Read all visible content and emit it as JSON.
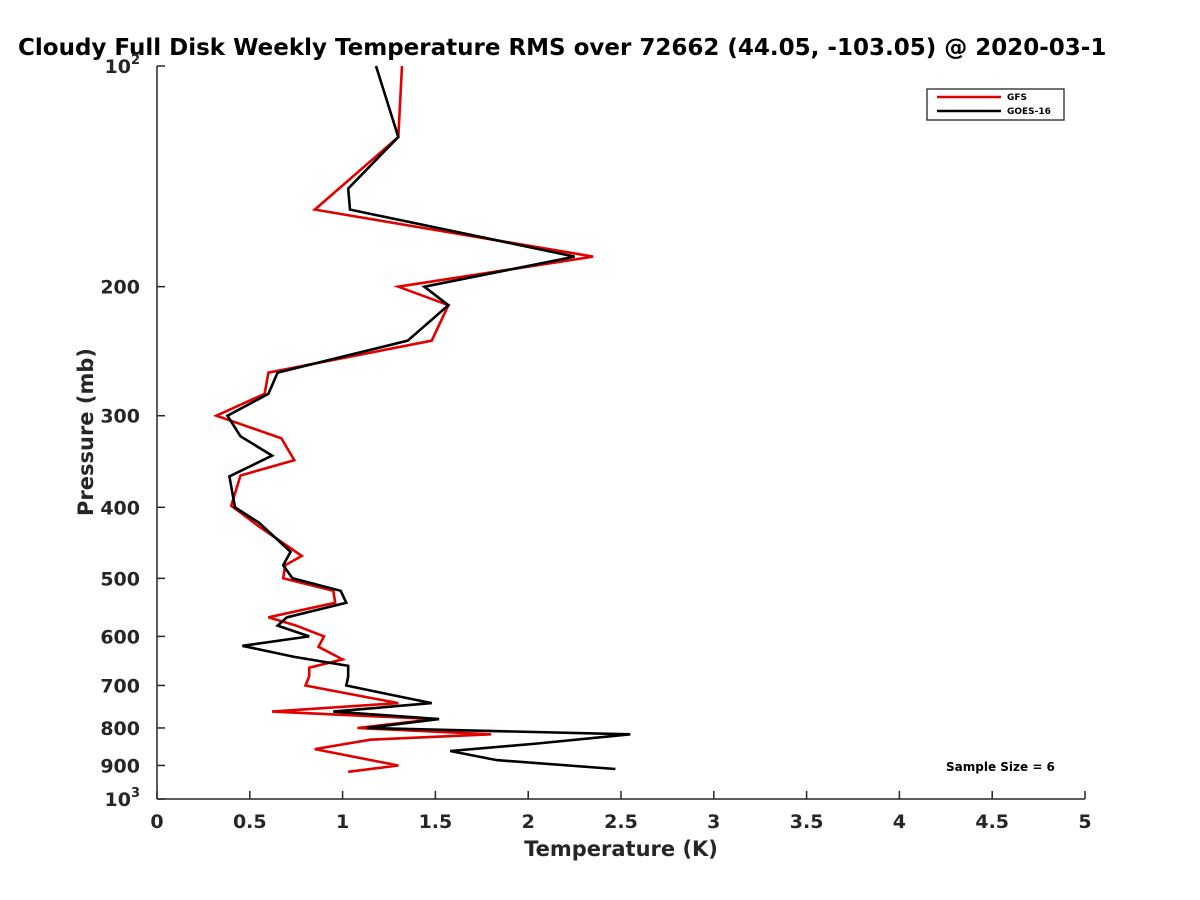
{
  "chart_data": {
    "type": "line",
    "title": "Cloudy Full Disk Weekly Temperature RMS over 72662 (44.05, -103.05) @ 2020-03-1",
    "xlabel": "Temperature (K)",
    "ylabel": "Pressure (mb)",
    "xlim": [
      0,
      5
    ],
    "ylim": [
      100,
      1000
    ],
    "y_scale": "log",
    "y_reversed": true,
    "grid": false,
    "legend_position": "top-right",
    "x_ticks": [
      0,
      0.5,
      1,
      1.5,
      2,
      2.5,
      3,
      3.5,
      4,
      4.5,
      5
    ],
    "x_tick_labels": [
      "0",
      "0.5",
      "1",
      "1.5",
      "2",
      "2.5",
      "3",
      "3.5",
      "4",
      "4.5",
      "5"
    ],
    "y_ticks": [
      {
        "value": 100,
        "base": "10",
        "exp": "2"
      },
      {
        "value": 200,
        "label": "200"
      },
      {
        "value": 300,
        "label": "300"
      },
      {
        "value": 400,
        "label": "400"
      },
      {
        "value": 500,
        "label": "500"
      },
      {
        "value": 600,
        "label": "600"
      },
      {
        "value": 700,
        "label": "700"
      },
      {
        "value": 800,
        "label": "800"
      },
      {
        "value": 900,
        "label": "900"
      },
      {
        "value": 1000,
        "base": "10",
        "exp": "3"
      }
    ],
    "series": [
      {
        "name": "GFS",
        "color": "#e00000",
        "points": [
          [
            1.32,
            100
          ],
          [
            1.3,
            125
          ],
          [
            0.85,
            157
          ],
          [
            2.35,
            182
          ],
          [
            1.3,
            200
          ],
          [
            1.57,
            212
          ],
          [
            1.48,
            237
          ],
          [
            0.6,
            262
          ],
          [
            0.58,
            280
          ],
          [
            0.32,
            300
          ],
          [
            0.67,
            322
          ],
          [
            0.74,
            345
          ],
          [
            0.45,
            362
          ],
          [
            0.4,
            398
          ],
          [
            0.55,
            425
          ],
          [
            0.78,
            466
          ],
          [
            0.69,
            480
          ],
          [
            0.68,
            500
          ],
          [
            0.95,
            520
          ],
          [
            0.96,
            540
          ],
          [
            0.6,
            565
          ],
          [
            0.75,
            580
          ],
          [
            0.9,
            600
          ],
          [
            0.87,
            620
          ],
          [
            1.0,
            645
          ],
          [
            0.82,
            662
          ],
          [
            0.82,
            680
          ],
          [
            0.8,
            700
          ],
          [
            1.05,
            720
          ],
          [
            1.3,
            740
          ],
          [
            0.62,
            760
          ],
          [
            1.5,
            778
          ],
          [
            1.08,
            800
          ],
          [
            1.8,
            816
          ],
          [
            1.15,
            830
          ],
          [
            0.85,
            855
          ],
          [
            1.3,
            900
          ],
          [
            1.03,
            918
          ]
        ]
      },
      {
        "name": "GOES-16",
        "color": "#000000",
        "points": [
          [
            1.18,
            100
          ],
          [
            1.3,
            125
          ],
          [
            1.03,
            147
          ],
          [
            1.04,
            157
          ],
          [
            2.25,
            182
          ],
          [
            1.44,
            200
          ],
          [
            1.57,
            212
          ],
          [
            1.35,
            237
          ],
          [
            0.65,
            262
          ],
          [
            0.6,
            280
          ],
          [
            0.38,
            300
          ],
          [
            0.45,
            320
          ],
          [
            0.62,
            340
          ],
          [
            0.39,
            363
          ],
          [
            0.42,
            400
          ],
          [
            0.55,
            420
          ],
          [
            0.72,
            460
          ],
          [
            0.68,
            480
          ],
          [
            0.73,
            500
          ],
          [
            0.99,
            520
          ],
          [
            1.02,
            540
          ],
          [
            0.7,
            565
          ],
          [
            0.65,
            580
          ],
          [
            0.82,
            600
          ],
          [
            0.46,
            618
          ],
          [
            0.74,
            640
          ],
          [
            1.03,
            658
          ],
          [
            1.03,
            680
          ],
          [
            1.02,
            700
          ],
          [
            1.25,
            720
          ],
          [
            1.48,
            740
          ],
          [
            0.95,
            760
          ],
          [
            1.52,
            778
          ],
          [
            1.13,
            800
          ],
          [
            2.55,
            816
          ],
          [
            2.05,
            840
          ],
          [
            1.58,
            860
          ],
          [
            1.83,
            885
          ],
          [
            2.47,
            910
          ]
        ]
      }
    ],
    "legend": [
      "GFS",
      "GOES-16"
    ],
    "annotation": "Sample Size = 6"
  }
}
